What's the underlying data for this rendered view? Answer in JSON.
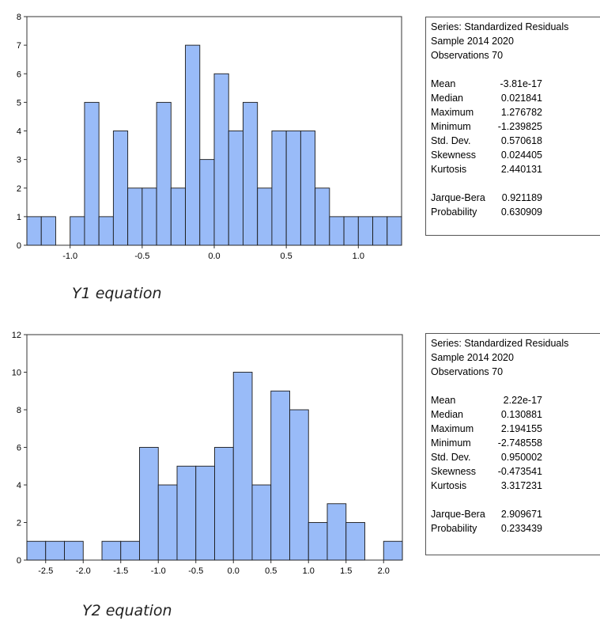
{
  "chart_data": [
    {
      "type": "bar",
      "bin_width": 0.1,
      "bin_centers": [
        -1.25,
        -1.15,
        -1.05,
        -0.95,
        -0.85,
        -0.75,
        -0.65,
        -0.55,
        -0.45,
        -0.35,
        -0.25,
        -0.15,
        -0.05,
        0.05,
        0.15,
        0.25,
        0.35,
        0.45,
        0.55,
        0.65,
        0.75,
        0.85,
        0.95,
        1.05,
        1.15,
        1.25
      ],
      "values": [
        1,
        1,
        0,
        1,
        5,
        1,
        4,
        2,
        2,
        5,
        2,
        7,
        3,
        6,
        4,
        5,
        2,
        4,
        4,
        4,
        2,
        1,
        1,
        1,
        1,
        1
      ],
      "xlim": [
        -1.3,
        1.3
      ],
      "ylim": [
        0,
        8
      ],
      "xticks": [
        -1.0,
        -0.5,
        0.0,
        0.5,
        1.0
      ],
      "xtick_labels": [
        "-1.0",
        "-0.5",
        "0.0",
        "0.5",
        "1.0"
      ],
      "yticks": [
        0,
        1,
        2,
        3,
        4,
        5,
        6,
        7,
        8
      ],
      "ytick_labels": [
        "0",
        "1",
        "2",
        "3",
        "4",
        "5",
        "6",
        "7",
        "8"
      ],
      "bar_color": "#99bbf8",
      "grid": false,
      "legend": "none"
    },
    {
      "type": "bar",
      "bin_width": 0.25,
      "bin_centers": [
        -2.625,
        -2.375,
        -2.125,
        -1.875,
        -1.625,
        -1.375,
        -1.125,
        -0.875,
        -0.625,
        -0.375,
        -0.125,
        0.125,
        0.375,
        0.625,
        0.875,
        1.125,
        1.375,
        1.625,
        1.875,
        2.125
      ],
      "values": [
        1,
        1,
        1,
        0,
        1,
        1,
        6,
        4,
        5,
        5,
        6,
        10,
        4,
        9,
        8,
        2,
        3,
        2,
        0,
        1
      ],
      "xlim": [
        -2.75,
        2.25
      ],
      "ylim": [
        0,
        12
      ],
      "xticks": [
        -2.5,
        -2.0,
        -1.5,
        -1.0,
        -0.5,
        0.0,
        0.5,
        1.0,
        1.5,
        2.0
      ],
      "xtick_labels": [
        "-2.5",
        "-2.0",
        "-1.5",
        "-1.0",
        "-0.5",
        "0.0",
        "0.5",
        "1.0",
        "1.5",
        "2.0"
      ],
      "yticks": [
        0,
        2,
        4,
        6,
        8,
        10,
        12
      ],
      "ytick_labels": [
        "0",
        "2",
        "4",
        "6",
        "8",
        "10",
        "12"
      ],
      "bar_color": "#99bbf8",
      "grid": false,
      "legend": "none"
    }
  ],
  "panels": [
    {
      "caption": "Y1 equation",
      "stats": {
        "series": "Series: Standardized Residuals",
        "sample": "Sample 2014 2020",
        "observations": "Observations 70",
        "rows": [
          {
            "label": "Mean",
            "value": "-3.81e-17"
          },
          {
            "label": "Median",
            "value": "0.021841"
          },
          {
            "label": "Maximum",
            "value": "1.276782"
          },
          {
            "label": "Minimum",
            "value": "-1.239825"
          },
          {
            "label": "Std. Dev.",
            "value": "0.570618"
          },
          {
            "label": "Skewness",
            "value": "0.024405"
          },
          {
            "label": "Kurtosis",
            "value": "2.440131"
          }
        ],
        "tests": [
          {
            "label": "Jarque-Bera",
            "value": "0.921189"
          },
          {
            "label": "Probability",
            "value": "0.630909"
          }
        ]
      }
    },
    {
      "caption": "Y2 equation",
      "stats": {
        "series": "Series: Standardized Residuals",
        "sample": "Sample 2014 2020",
        "observations": "Observations 70",
        "rows": [
          {
            "label": "Mean",
            "value": "2.22e-17"
          },
          {
            "label": "Median",
            "value": "0.130881"
          },
          {
            "label": "Maximum",
            "value": "2.194155"
          },
          {
            "label": "Minimum",
            "value": "-2.748558"
          },
          {
            "label": "Std. Dev.",
            "value": "0.950002"
          },
          {
            "label": "Skewness",
            "value": "-0.473541"
          },
          {
            "label": "Kurtosis",
            "value": "3.317231"
          }
        ],
        "tests": [
          {
            "label": "Jarque-Bera",
            "value": "2.909671"
          },
          {
            "label": "Probability",
            "value": "0.233439"
          }
        ]
      }
    }
  ]
}
